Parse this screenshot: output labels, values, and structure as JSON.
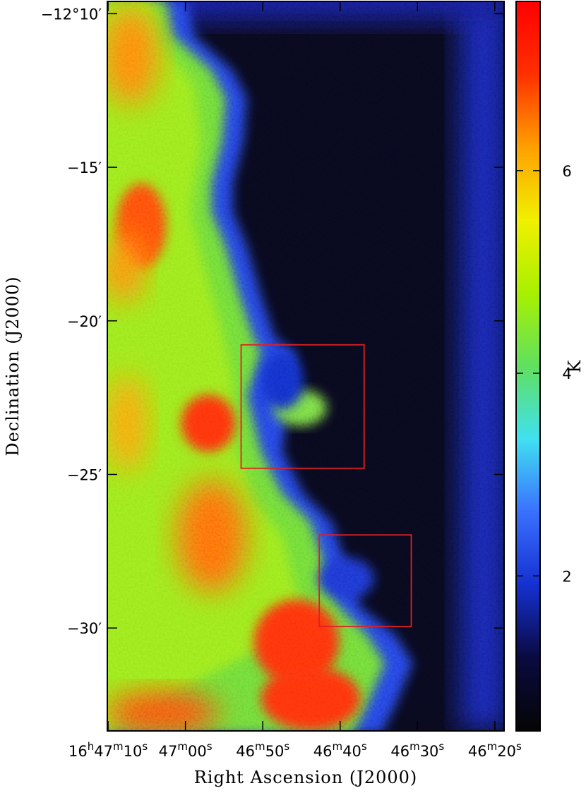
{
  "chart_data": {
    "type": "image",
    "xlabel": "Right Ascension (J2000)",
    "ylabel": "Declination (J2000)",
    "colorbar_label": "K",
    "xlim": [
      70.1,
      18.8
    ],
    "xticks": [
      {
        "value": 70,
        "label": "16h47m10s"
      },
      {
        "value": 60,
        "label": "47m00s"
      },
      {
        "value": 50,
        "label": "46m50s"
      },
      {
        "value": 40,
        "label": "46m40s"
      },
      {
        "value": 30,
        "label": "46m30s"
      },
      {
        "value": 20,
        "label": "46m20s"
      }
    ],
    "ylim": [
      -33.35,
      -9.6
    ],
    "yticks": [
      {
        "value": -10,
        "label": "−12°10′"
      },
      {
        "value": -15,
        "label": "−15′"
      },
      {
        "value": -20,
        "label": "−20′"
      },
      {
        "value": -25,
        "label": "−25′"
      },
      {
        "value": -30,
        "label": "−30′"
      }
    ],
    "clim": [
      0.47,
      7.67
    ],
    "cticks": [
      2,
      4,
      6
    ],
    "colormap": [
      "#050505",
      "#0a0a40",
      "#1530d0",
      "#3a70ff",
      "#40e0f0",
      "#60e060",
      "#a8f000",
      "#f0f000",
      "#ffa000",
      "#ff3000",
      "#ff0000"
    ],
    "regions": [
      {
        "xlim": [
          52.8,
          36.9
        ],
        "ylim": [
          -20.78,
          -24.8
        ],
        "color": "#e02020"
      },
      {
        "xlim": [
          42.7,
          30.8
        ],
        "ylim": [
          -26.97,
          -29.95
        ],
        "color": "#e02020"
      }
    ]
  }
}
